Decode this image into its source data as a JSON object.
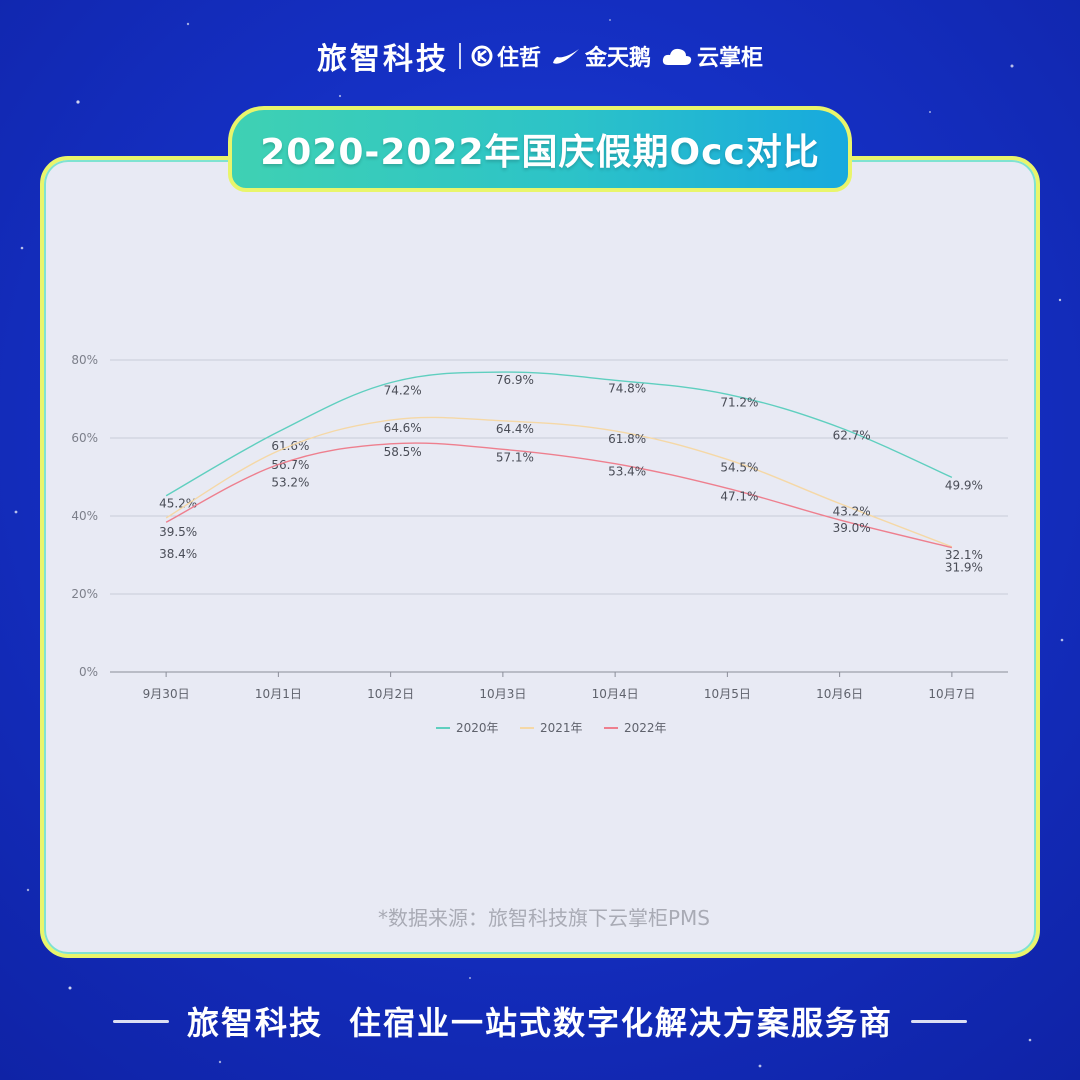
{
  "header": {
    "brand": "旅智科技",
    "partners": [
      {
        "name": "住哲",
        "icon": "zhuzhe-logo-icon"
      },
      {
        "name": "金天鹅",
        "icon": "swan-logo-icon"
      },
      {
        "name": "云掌柜",
        "icon": "cloud-logo-icon"
      }
    ]
  },
  "title": "2020-2022年国庆假期Occ对比",
  "chart_data": {
    "type": "line",
    "title": "2020-2022年国庆假期Occ对比",
    "categories": [
      "9月30日",
      "10月1日",
      "10月2日",
      "10月3日",
      "10月4日",
      "10月5日",
      "10月6日",
      "10月7日"
    ],
    "y_ticks": [
      "0%",
      "20%",
      "40%",
      "60%",
      "80%"
    ],
    "ylim": [
      0,
      80
    ],
    "grid": true,
    "legend_position": "bottom-center",
    "series": [
      {
        "name": "2020年",
        "color": "#5fcfbf",
        "values": [
          45.2,
          61.6,
          74.2,
          76.9,
          74.8,
          71.2,
          62.7,
          49.9
        ],
        "labels": [
          "45.2%",
          "61.6%",
          "74.2%",
          "76.9%",
          "74.8%",
          "71.2%",
          "62.7%",
          "49.9%"
        ]
      },
      {
        "name": "2021年",
        "color": "#f5d8a6",
        "values": [
          39.5,
          56.7,
          64.6,
          64.4,
          61.8,
          54.5,
          43.2,
          32.1
        ],
        "labels": [
          "39.5%",
          "56.7%",
          "64.6%",
          "64.4%",
          "61.8%",
          "54.5%",
          "43.2%",
          "32.1%"
        ]
      },
      {
        "name": "2022年",
        "color": "#ee7f8e",
        "values": [
          38.4,
          53.2,
          58.5,
          57.1,
          53.4,
          47.1,
          39.0,
          31.9
        ],
        "labels": [
          "38.4%",
          "53.2%",
          "58.5%",
          "57.1%",
          "53.4%",
          "47.1%",
          "39.0%",
          "31.9%"
        ]
      }
    ]
  },
  "source_note": "*数据来源：旅智科技旗下云掌柜PMS",
  "footer": {
    "brand": "旅智科技",
    "slogan": "住宿业一站式数字化解决方案服务商"
  }
}
